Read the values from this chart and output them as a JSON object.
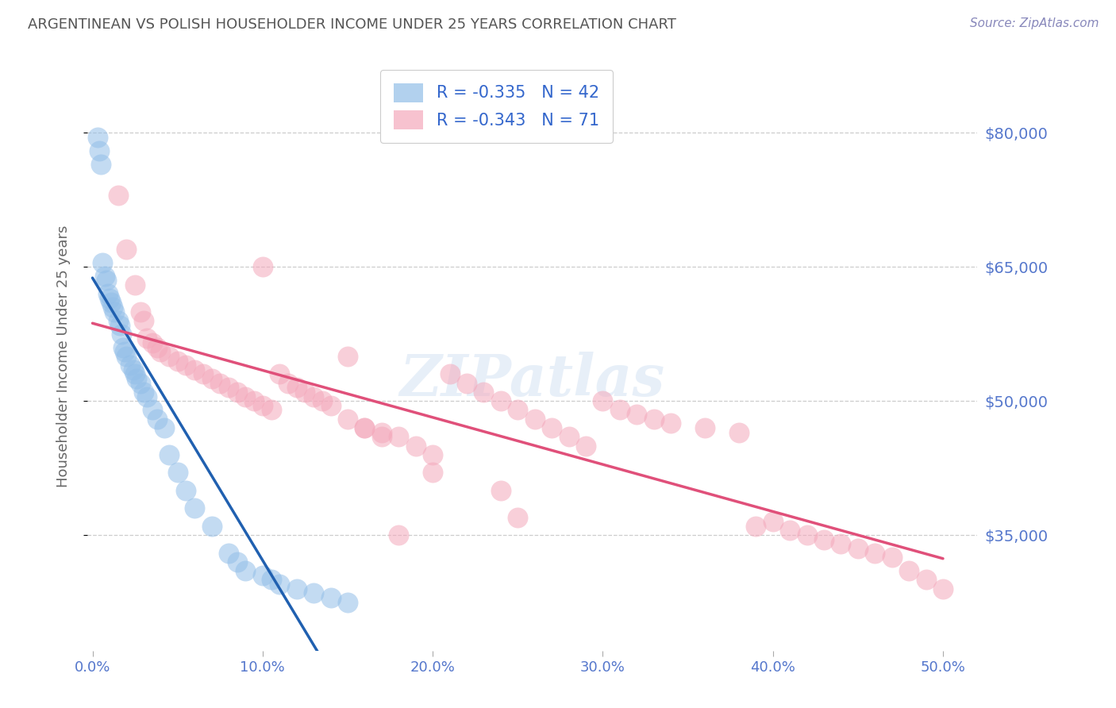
{
  "title": "ARGENTINEAN VS POLISH HOUSEHOLDER INCOME UNDER 25 YEARS CORRELATION CHART",
  "source": "Source: ZipAtlas.com",
  "ylabel": "Householder Income Under 25 years",
  "xlabel_ticks": [
    "0.0%",
    "10.0%",
    "20.0%",
    "30.0%",
    "40.0%",
    "50.0%"
  ],
  "xlabel_vals": [
    0,
    10,
    20,
    30,
    40,
    50
  ],
  "ytick_labels": [
    "$35,000",
    "$50,000",
    "$65,000",
    "$80,000"
  ],
  "ytick_vals": [
    35000,
    50000,
    65000,
    80000
  ],
  "ylim": [
    22000,
    88000
  ],
  "xlim": [
    -0.3,
    52
  ],
  "R_arg": -0.335,
  "N_arg": 42,
  "R_pol": -0.343,
  "N_pol": 71,
  "legend_label_arg": "R = -0.335   N = 42",
  "legend_label_pol": "R = -0.343   N = 71",
  "arg_color": "#92BEE8",
  "pol_color": "#F4A8BB",
  "arg_line_color": "#2060B0",
  "pol_line_color": "#E0507A",
  "dashed_line_color": "#BBBBBB",
  "title_color": "#555555",
  "source_color": "#8888BB",
  "axis_label_color": "#666666",
  "tick_color": "#5577CC",
  "background_color": "#FFFFFF",
  "watermark": "ZIPatlas",
  "legend_text_color": "#3366CC",
  "legend_R_color": "#3366CC",
  "legend_N_color": "#3366CC",
  "arg_x": [
    0.3,
    0.4,
    0.5,
    0.6,
    0.7,
    0.8,
    0.9,
    1.0,
    1.1,
    1.2,
    1.3,
    1.5,
    1.6,
    1.7,
    1.8,
    1.9,
    2.0,
    2.2,
    2.4,
    2.5,
    2.6,
    2.8,
    3.0,
    3.2,
    3.5,
    3.8,
    4.2,
    4.5,
    5.0,
    5.5,
    6.0,
    7.0,
    8.0,
    8.5,
    9.0,
    10.0,
    10.5,
    11.0,
    12.0,
    13.0,
    14.0,
    15.0
  ],
  "arg_y": [
    79500,
    78000,
    76500,
    65500,
    64000,
    63500,
    62000,
    61500,
    61000,
    60500,
    60000,
    59000,
    58500,
    57500,
    56000,
    55500,
    55000,
    54000,
    53500,
    53000,
    52500,
    52000,
    51000,
    50500,
    49000,
    48000,
    47000,
    44000,
    42000,
    40000,
    38000,
    36000,
    33000,
    32000,
    31000,
    30500,
    30000,
    29500,
    29000,
    28500,
    28000,
    27500
  ],
  "pol_x": [
    1.5,
    2.0,
    2.5,
    2.8,
    3.0,
    3.2,
    3.5,
    3.8,
    4.0,
    4.5,
    5.0,
    5.5,
    6.0,
    6.5,
    7.0,
    7.5,
    8.0,
    8.5,
    9.0,
    9.5,
    10.0,
    10.5,
    11.0,
    11.5,
    12.0,
    12.5,
    13.0,
    13.5,
    14.0,
    15.0,
    16.0,
    17.0,
    18.0,
    19.0,
    20.0,
    21.0,
    22.0,
    23.0,
    24.0,
    25.0,
    26.0,
    27.0,
    28.0,
    29.0,
    30.0,
    31.0,
    32.0,
    33.0,
    34.0,
    36.0,
    38.0,
    39.0,
    40.0,
    41.0,
    42.0,
    43.0,
    44.0,
    45.0,
    46.0,
    47.0,
    48.0,
    49.0,
    50.0,
    24.0,
    25.0,
    10.0,
    15.0,
    20.0,
    16.0,
    17.0,
    18.0
  ],
  "pol_y": [
    73000,
    67000,
    63000,
    60000,
    59000,
    57000,
    56500,
    56000,
    55500,
    55000,
    54500,
    54000,
    53500,
    53000,
    52500,
    52000,
    51500,
    51000,
    50500,
    50000,
    49500,
    49000,
    53000,
    52000,
    51500,
    51000,
    50500,
    50000,
    49500,
    48000,
    47000,
    46500,
    46000,
    45000,
    44000,
    53000,
    52000,
    51000,
    50000,
    49000,
    48000,
    47000,
    46000,
    45000,
    50000,
    49000,
    48500,
    48000,
    47500,
    47000,
    46500,
    36000,
    36500,
    35500,
    35000,
    34500,
    34000,
    33500,
    33000,
    32500,
    31000,
    30000,
    29000,
    40000,
    37000,
    65000,
    55000,
    42000,
    47000,
    46000,
    35000
  ]
}
